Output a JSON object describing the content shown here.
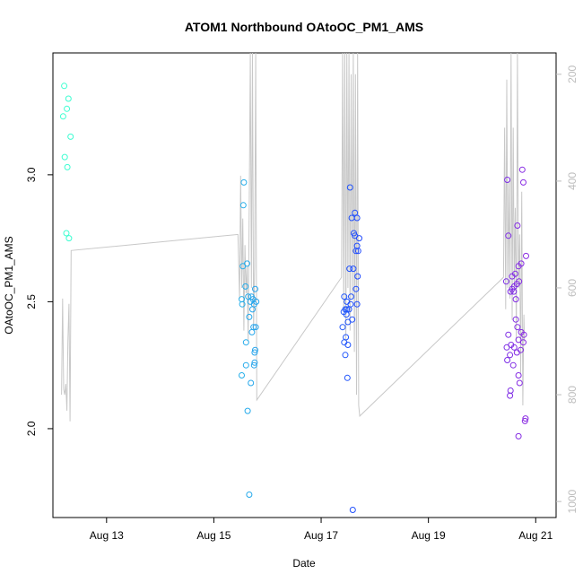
{
  "chart_data": {
    "type": "scatter",
    "title": "ATOM1 Northbound OAtoOC_PM1_AMS",
    "xlabel": "Date",
    "ylabel": "OAtoOC_PM1_AMS",
    "ylim": [
      1.65,
      3.48
    ],
    "xlim": [
      12.0,
      21.38
    ],
    "x_ticks": [
      {
        "value": 13,
        "label": "Aug 13"
      },
      {
        "value": 15,
        "label": "Aug 15"
      },
      {
        "value": 17,
        "label": "Aug 17"
      },
      {
        "value": 19,
        "label": "Aug 19"
      },
      {
        "value": 21,
        "label": "Aug 21"
      }
    ],
    "y_ticks": [
      {
        "value": 2.0,
        "label": "2.0"
      },
      {
        "value": 2.5,
        "label": "2.5"
      },
      {
        "value": 3.0,
        "label": "3.0"
      }
    ],
    "right_axis": {
      "color": "#bdbdbd",
      "ylim": [
        1030,
        160
      ],
      "ticks": [
        {
          "value": 200,
          "label": "200"
        },
        {
          "value": 400,
          "label": "400"
        },
        {
          "value": 600,
          "label": "600"
        },
        {
          "value": 800,
          "label": "800"
        },
        {
          "value": 1000,
          "label": "1000"
        }
      ]
    },
    "grid": false,
    "point_color_gradient": [
      "#3cffd0",
      "#27c4e6",
      "#1f3fff",
      "#8a2be2"
    ],
    "points": [
      [
        12.21,
        3.35
      ],
      [
        12.29,
        3.3
      ],
      [
        12.26,
        3.26
      ],
      [
        12.19,
        3.23
      ],
      [
        12.33,
        3.15
      ],
      [
        12.22,
        3.07
      ],
      [
        12.27,
        3.03
      ],
      [
        12.25,
        2.77
      ],
      [
        12.3,
        2.75
      ],
      [
        15.56,
        2.97
      ],
      [
        15.55,
        2.88
      ],
      [
        15.62,
        2.65
      ],
      [
        15.54,
        2.64
      ],
      [
        15.59,
        2.56
      ],
      [
        15.77,
        2.55
      ],
      [
        15.52,
        2.51
      ],
      [
        15.64,
        2.52
      ],
      [
        15.7,
        2.52
      ],
      [
        15.68,
        2.5
      ],
      [
        15.73,
        2.51
      ],
      [
        15.75,
        2.49
      ],
      [
        15.79,
        2.5
      ],
      [
        15.53,
        2.49
      ],
      [
        15.72,
        2.47
      ],
      [
        15.66,
        2.44
      ],
      [
        15.74,
        2.4
      ],
      [
        15.71,
        2.38
      ],
      [
        15.78,
        2.4
      ],
      [
        15.6,
        2.34
      ],
      [
        15.77,
        2.31
      ],
      [
        15.76,
        2.3
      ],
      [
        15.76,
        2.26
      ],
      [
        15.75,
        2.25
      ],
      [
        15.6,
        2.25
      ],
      [
        15.52,
        2.21
      ],
      [
        15.69,
        2.18
      ],
      [
        15.63,
        2.07
      ],
      [
        15.66,
        1.74
      ],
      [
        17.54,
        2.95
      ],
      [
        17.63,
        2.85
      ],
      [
        17.57,
        2.83
      ],
      [
        17.67,
        2.83
      ],
      [
        17.61,
        2.77
      ],
      [
        17.63,
        2.76
      ],
      [
        17.71,
        2.75
      ],
      [
        17.67,
        2.72
      ],
      [
        17.65,
        2.7
      ],
      [
        17.69,
        2.7
      ],
      [
        17.53,
        2.63
      ],
      [
        17.6,
        2.63
      ],
      [
        17.68,
        2.6
      ],
      [
        17.65,
        2.55
      ],
      [
        17.56,
        2.52
      ],
      [
        17.43,
        2.52
      ],
      [
        17.48,
        2.5
      ],
      [
        17.55,
        2.49
      ],
      [
        17.67,
        2.49
      ],
      [
        17.45,
        2.47
      ],
      [
        17.48,
        2.47
      ],
      [
        17.52,
        2.47
      ],
      [
        17.42,
        2.46
      ],
      [
        17.47,
        2.45
      ],
      [
        17.58,
        2.43
      ],
      [
        17.5,
        2.42
      ],
      [
        17.4,
        2.4
      ],
      [
        17.46,
        2.36
      ],
      [
        17.43,
        2.34
      ],
      [
        17.5,
        2.33
      ],
      [
        17.45,
        2.29
      ],
      [
        17.49,
        2.2
      ],
      [
        17.59,
        1.68
      ],
      [
        20.47,
        2.98
      ],
      [
        20.75,
        3.02
      ],
      [
        20.77,
        2.97
      ],
      [
        20.49,
        2.76
      ],
      [
        20.66,
        2.8
      ],
      [
        20.82,
        2.68
      ],
      [
        20.73,
        2.65
      ],
      [
        20.68,
        2.64
      ],
      [
        20.62,
        2.61
      ],
      [
        20.56,
        2.6
      ],
      [
        20.6,
        2.56
      ],
      [
        20.56,
        2.55
      ],
      [
        20.53,
        2.54
      ],
      [
        20.59,
        2.54
      ],
      [
        20.45,
        2.58
      ],
      [
        20.65,
        2.57
      ],
      [
        20.69,
        2.58
      ],
      [
        20.63,
        2.51
      ],
      [
        20.63,
        2.43
      ],
      [
        20.66,
        2.4
      ],
      [
        20.73,
        2.38
      ],
      [
        20.78,
        2.37
      ],
      [
        20.49,
        2.37
      ],
      [
        20.68,
        2.35
      ],
      [
        20.77,
        2.34
      ],
      [
        20.54,
        2.33
      ],
      [
        20.46,
        2.32
      ],
      [
        20.6,
        2.32
      ],
      [
        20.72,
        2.31
      ],
      [
        20.52,
        2.29
      ],
      [
        20.65,
        2.3
      ],
      [
        20.47,
        2.27
      ],
      [
        20.58,
        2.25
      ],
      [
        20.68,
        2.21
      ],
      [
        20.7,
        2.18
      ],
      [
        20.53,
        2.15
      ],
      [
        20.52,
        2.13
      ],
      [
        20.81,
        2.04
      ],
      [
        20.8,
        2.03
      ],
      [
        20.68,
        1.97
      ]
    ],
    "line_series": {
      "color": "#c8c8c8",
      "axis": "right",
      "points": [
        [
          12.16,
          800
        ],
        [
          12.18,
          620
        ],
        [
          12.2,
          790
        ],
        [
          12.22,
          800
        ],
        [
          12.24,
          780
        ],
        [
          12.26,
          830
        ],
        [
          12.28,
          700
        ],
        [
          12.3,
          630
        ],
        [
          12.32,
          850
        ],
        [
          12.34,
          530
        ],
        [
          15.45,
          500
        ],
        [
          15.48,
          620
        ],
        [
          15.5,
          390
        ],
        [
          15.52,
          600
        ],
        [
          15.54,
          470
        ],
        [
          15.56,
          680
        ],
        [
          15.58,
          520
        ],
        [
          15.6,
          610
        ],
        [
          15.62,
          560
        ],
        [
          15.64,
          700
        ],
        [
          15.66,
          440
        ],
        [
          15.68,
          160
        ],
        [
          15.7,
          600
        ],
        [
          15.72,
          160
        ],
        [
          15.74,
          680
        ],
        [
          15.76,
          560
        ],
        [
          15.78,
          160
        ],
        [
          15.8,
          810
        ],
        [
          17.38,
          580
        ],
        [
          17.4,
          160
        ],
        [
          17.42,
          640
        ],
        [
          17.44,
          160
        ],
        [
          17.46,
          700
        ],
        [
          17.48,
          160
        ],
        [
          17.5,
          600
        ],
        [
          17.52,
          160
        ],
        [
          17.54,
          680
        ],
        [
          17.56,
          200
        ],
        [
          17.58,
          620
        ],
        [
          17.6,
          160
        ],
        [
          17.62,
          720
        ],
        [
          17.64,
          200
        ],
        [
          17.66,
          800
        ],
        [
          17.68,
          160
        ],
        [
          17.7,
          820
        ],
        [
          17.72,
          840
        ],
        [
          20.4,
          580
        ],
        [
          20.42,
          300
        ],
        [
          20.44,
          640
        ],
        [
          20.46,
          210
        ],
        [
          20.48,
          600
        ],
        [
          20.5,
          400
        ],
        [
          20.52,
          620
        ],
        [
          20.54,
          160
        ],
        [
          20.56,
          660
        ],
        [
          20.58,
          300
        ],
        [
          20.6,
          600
        ],
        [
          20.62,
          450
        ],
        [
          20.64,
          700
        ],
        [
          20.66,
          160
        ],
        [
          20.68,
          600
        ],
        [
          20.7,
          500
        ],
        [
          20.72,
          760
        ],
        [
          20.74,
          420
        ],
        [
          20.76,
          820
        ],
        [
          20.78,
          650
        ],
        [
          20.79,
          700
        ]
      ]
    }
  }
}
